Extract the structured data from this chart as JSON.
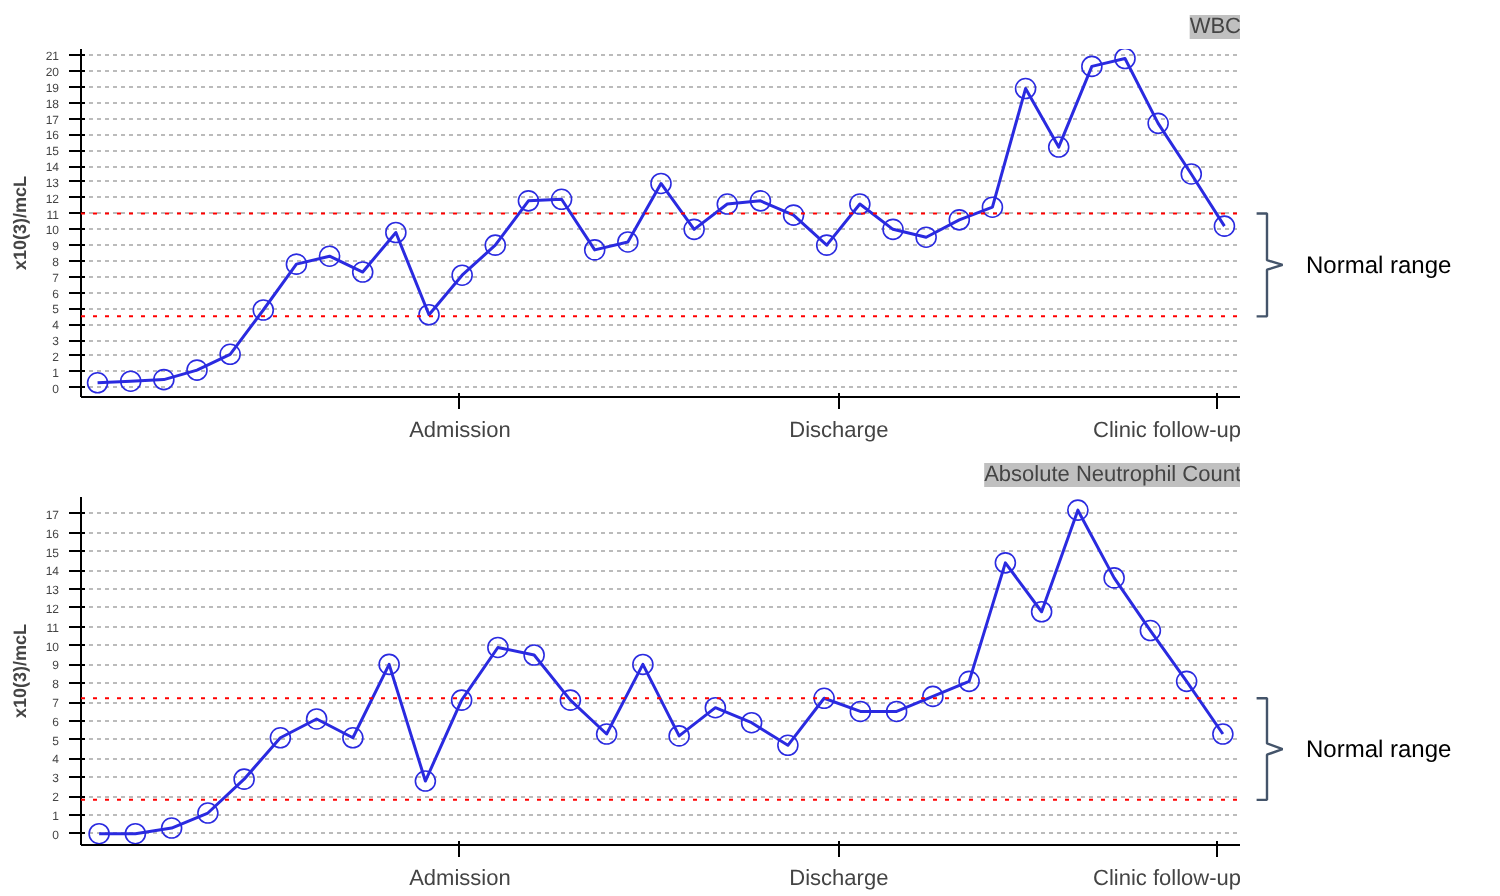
{
  "chart_data": [
    {
      "type": "line",
      "title": "WBC",
      "ylabel": "x10(3)/mcL",
      "categories": [
        null,
        null,
        null,
        null,
        null,
        null,
        null,
        null,
        null,
        null,
        null,
        null,
        null,
        null,
        null,
        null,
        null,
        null,
        null,
        null,
        null,
        null,
        null,
        null,
        null,
        null,
        null,
        null,
        null,
        null,
        null,
        null,
        null,
        null,
        null
      ],
      "series": [
        {
          "color": "#2a2ae0",
          "values": [
            0.3,
            0.4,
            0.5,
            1.1,
            2.1,
            4.9,
            7.8,
            8.3,
            7.3,
            9.8,
            4.6,
            7.1,
            9.0,
            11.8,
            11.9,
            8.7,
            9.2,
            12.9,
            10.0,
            11.6,
            11.8,
            10.9,
            9.0,
            11.6,
            10.0,
            9.5,
            10.6,
            11.4,
            18.9,
            15.2,
            20.3,
            20.8,
            16.7,
            13.5,
            10.2
          ]
        }
      ],
      "ylim": [
        -0.6,
        21.4
      ],
      "yticks": [
        0,
        1,
        2,
        3,
        4,
        5,
        6,
        7,
        8,
        9,
        10,
        11,
        12,
        13,
        14,
        15,
        16,
        17,
        18,
        19,
        20,
        21
      ],
      "grid": "y",
      "marker": "circle",
      "ref_lines": [
        {
          "axis": "y",
          "value": 11.0,
          "color": "#ff0000",
          "line_style": "dotted"
        },
        {
          "axis": "y",
          "value": 4.5,
          "color": "#ff0000",
          "line_style": "dotted"
        }
      ],
      "annotations": [
        "Admission",
        "Discharge",
        "Clinic follow-up",
        "Normal range"
      ]
    },
    {
      "type": "line",
      "title": "Absolute Neutrophil Count",
      "ylabel": "x10(3)/mcL",
      "categories": [
        null,
        null,
        null,
        null,
        null,
        null,
        null,
        null,
        null,
        null,
        null,
        null,
        null,
        null,
        null,
        null,
        null,
        null,
        null,
        null,
        null,
        null,
        null,
        null,
        null,
        null,
        null,
        null,
        null,
        null,
        null,
        null
      ],
      "series": [
        {
          "color": "#2a2ae0",
          "values": [
            0,
            0,
            0.3,
            1.1,
            2.9,
            5.1,
            6.1,
            5.1,
            9.0,
            2.8,
            7.1,
            9.9,
            9.5,
            7.1,
            5.3,
            9.0,
            5.2,
            6.7,
            5.9,
            4.7,
            7.2,
            6.5,
            6.5,
            7.3,
            8.1,
            14.4,
            11.8,
            17.2,
            13.6,
            10.8,
            8.1,
            5.3
          ]
        }
      ],
      "ylim": [
        -0.6,
        17.9
      ],
      "yticks": [
        0,
        1,
        2,
        3,
        4,
        5,
        6,
        7,
        8,
        9,
        10,
        11,
        12,
        13,
        14,
        15,
        16,
        17
      ],
      "grid": "y",
      "marker": "circle",
      "ref_lines": [
        {
          "axis": "y",
          "value": 7.2,
          "color": "#ff0000",
          "line_style": "dotted"
        },
        {
          "axis": "y",
          "value": 1.8,
          "color": "#ff0000",
          "line_style": "dotted"
        }
      ],
      "annotations": [
        "Admission",
        "Discharge",
        "Clinic follow-up",
        "Normal range"
      ]
    }
  ]
}
